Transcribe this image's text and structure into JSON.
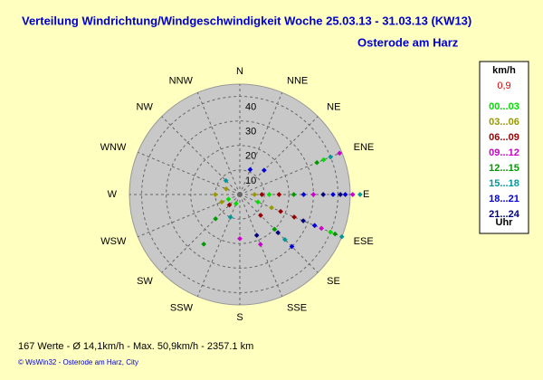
{
  "chart_data": {
    "type": "polar-scatter",
    "title": "Verteilung Windrichtung/Windgeschwindigkeit  Woche 25.03.13 - 31.03.13 (KW13)",
    "subtitle": "Osterode am Harz",
    "rlim": [
      0,
      45
    ],
    "rticks": [
      10,
      20,
      30,
      40
    ],
    "thetaticks": [
      {
        "value": 0,
        "label": "N"
      },
      {
        "value": 22.5,
        "label": "NNE"
      },
      {
        "value": 45,
        "label": "NE"
      },
      {
        "value": 67.5,
        "label": "ENE"
      },
      {
        "value": 90,
        "label": "E"
      },
      {
        "value": 112.5,
        "label": "ESE"
      },
      {
        "value": 135,
        "label": "SE"
      },
      {
        "value": 157.5,
        "label": "SSE"
      },
      {
        "value": 180,
        "label": "S"
      },
      {
        "value": 202.5,
        "label": "SSW"
      },
      {
        "value": 225,
        "label": "SW"
      },
      {
        "value": 247.5,
        "label": "WSW"
      },
      {
        "value": 270,
        "label": "W"
      },
      {
        "value": 292.5,
        "label": "WNW"
      },
      {
        "value": 315,
        "label": "NW"
      },
      {
        "value": 337.5,
        "label": "NNW"
      }
    ],
    "legend_unit": "km/h",
    "legend_current": "0,9",
    "legend_footer": "Uhr",
    "series": [
      {
        "name": "00...03",
        "color": "#00dd00",
        "directions": [
          112.5,
          90,
          67.5,
          247.5,
          202.5,
          112.5
        ],
        "values": [
          8,
          12,
          37,
          5,
          4,
          40
        ]
      },
      {
        "name": "03...06",
        "color": "#999900",
        "directions": [
          270,
          292.5,
          247.5,
          90,
          112.5
        ],
        "values": [
          10,
          6,
          8,
          6,
          14
        ]
      },
      {
        "name": "06...09",
        "color": "#990000",
        "directions": [
          90,
          112.5,
          112.5,
          135,
          90,
          225
        ],
        "values": [
          9,
          18,
          24,
          12,
          16,
          6
        ]
      },
      {
        "name": "09...12",
        "color": "#cc00cc",
        "directions": [
          90,
          67.5,
          112.5,
          180,
          157.5,
          90
        ],
        "values": [
          46,
          44,
          36,
          18,
          22,
          30
        ]
      },
      {
        "name": "12...15",
        "color": "#009900",
        "directions": [
          112.5,
          135,
          216,
          90,
          67.5,
          225
        ],
        "values": [
          42,
          20,
          25,
          22,
          34,
          14
        ]
      },
      {
        "name": "15...18",
        "color": "#009999",
        "directions": [
          90,
          112.5,
          67.5,
          202.5,
          315,
          135
        ],
        "values": [
          49,
          45,
          40,
          10,
          8,
          26
        ]
      },
      {
        "name": "18...21",
        "color": "#0000dd",
        "directions": [
          90,
          90,
          112.5,
          45,
          22.5,
          135,
          90
        ],
        "values": [
          43,
          38,
          33,
          14,
          11,
          30,
          26
        ]
      },
      {
        "name": "21...24",
        "color": "#000080",
        "directions": [
          90,
          112.5,
          157.5,
          90,
          135
        ],
        "values": [
          41,
          28,
          18,
          34,
          22
        ]
      }
    ],
    "footer_stats": "167 Werte   -   Ø 14,1km/h   -   Max. 50,9km/h   -   2357.1 km",
    "footer_credit": "© WsWin32  -  Osterode am Harz, City"
  }
}
